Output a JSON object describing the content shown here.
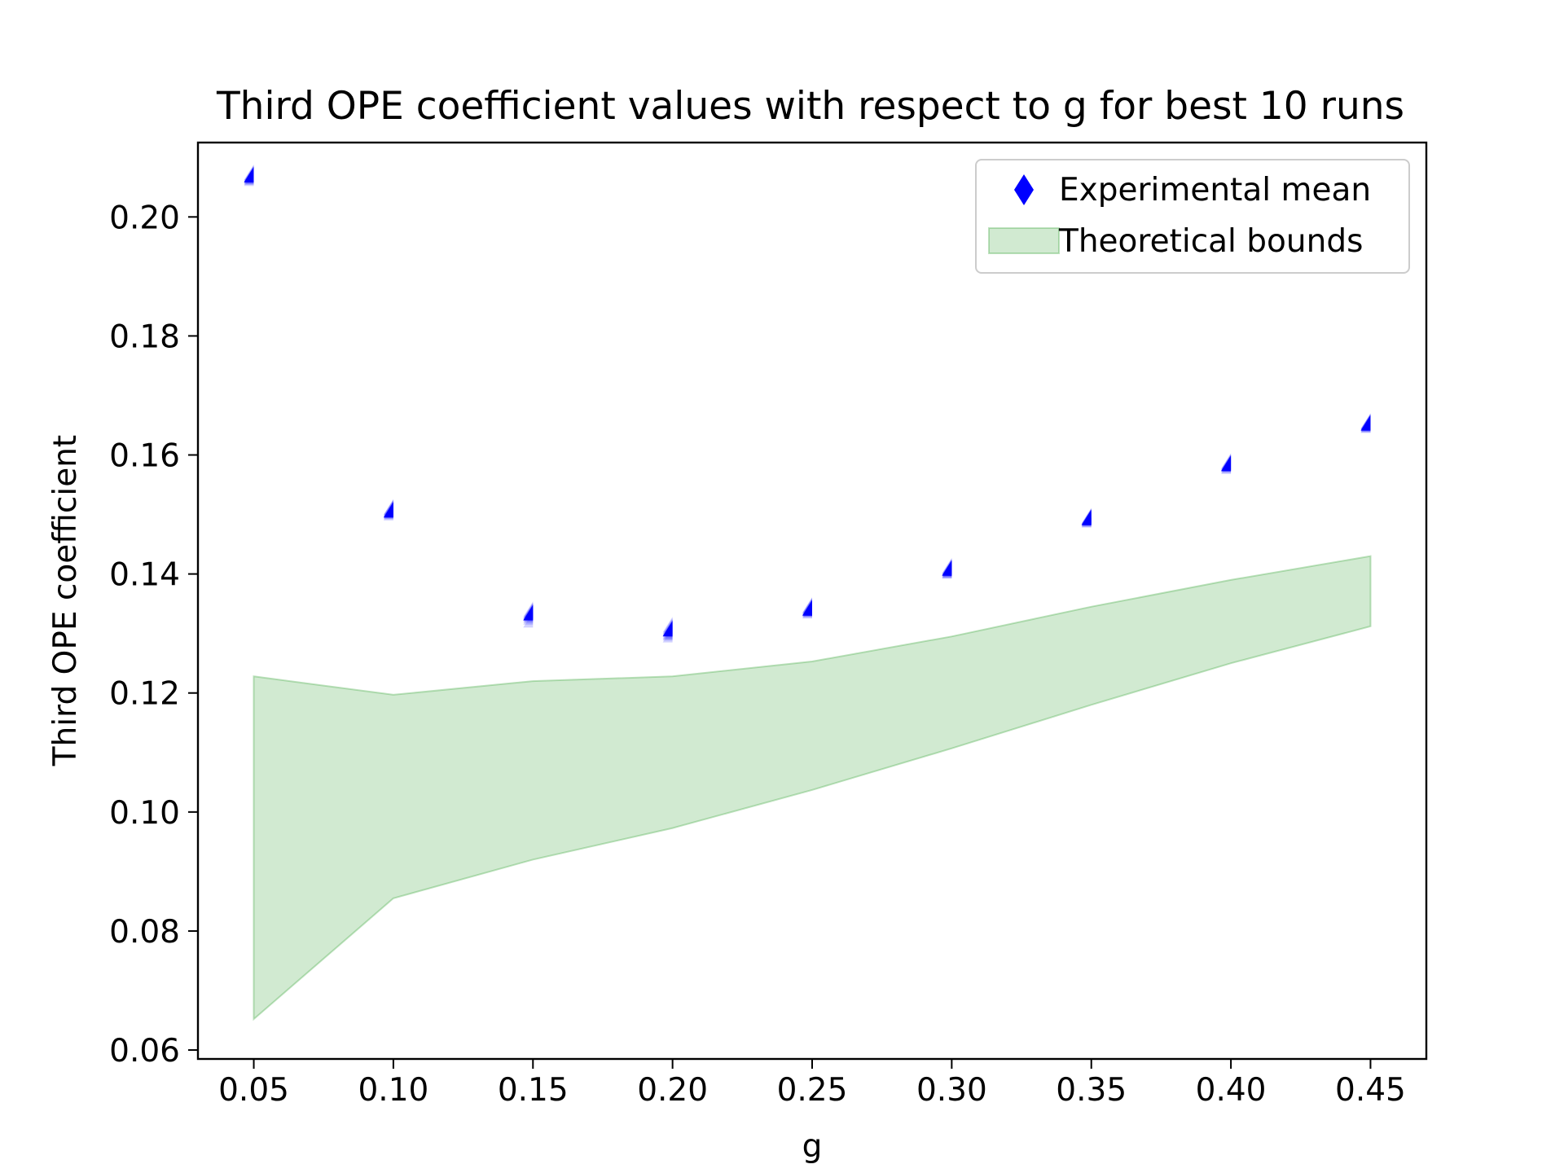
{
  "chart_data": {
    "type": "scatter",
    "title": "Third OPE coefficient values with respect to g for best 10 runs",
    "xlabel": "g",
    "ylabel": "Third OPE coefficient",
    "xlim": [
      0.03,
      0.47
    ],
    "ylim": [
      0.0585,
      0.2125
    ],
    "x_ticks": [
      "0.05",
      "0.10",
      "0.15",
      "0.20",
      "0.25",
      "0.30",
      "0.35",
      "0.40",
      "0.45"
    ],
    "y_ticks": [
      "0.06",
      "0.08",
      "0.10",
      "0.12",
      "0.14",
      "0.16",
      "0.18",
      "0.20"
    ],
    "grid": false,
    "legend_position": "top-right",
    "series": [
      {
        "name": "Experimental mean",
        "kind": "scatter",
        "marker": "thin-diamond",
        "color": "#0000ff",
        "x": [
          0.05,
          0.1,
          0.15,
          0.2,
          0.25,
          0.3,
          0.35,
          0.4,
          0.45
        ],
        "y": [
          0.2058,
          0.1495,
          0.1322,
          0.1295,
          0.133,
          0.1397,
          0.1482,
          0.1573,
          0.1641
        ],
        "runs": [
          [
            0.2055,
            0.206,
            0.2058,
            0.2062,
            0.2052,
            0.2057,
            0.2059,
            0.2061,
            0.2054,
            0.2056
          ],
          [
            0.149,
            0.1498,
            0.1495,
            0.1492,
            0.15,
            0.1494,
            0.1497,
            0.1493,
            0.1496,
            0.1499
          ],
          [
            0.131,
            0.1325,
            0.1322,
            0.1318,
            0.1328,
            0.132,
            0.1324,
            0.1315,
            0.1326,
            0.1323
          ],
          [
            0.1285,
            0.13,
            0.1292,
            0.1298,
            0.1288,
            0.1302,
            0.1295,
            0.129,
            0.1297,
            0.1296
          ],
          [
            0.1325,
            0.1333,
            0.1328,
            0.1335,
            0.133,
            0.1327,
            0.1332,
            0.1329,
            0.1331,
            0.1334
          ],
          [
            0.1392,
            0.14,
            0.1395,
            0.1398,
            0.1397,
            0.1394,
            0.1399,
            0.1396,
            0.1401,
            0.1393
          ],
          [
            0.1478,
            0.1484,
            0.148,
            0.1483,
            0.1482,
            0.1481,
            0.1485,
            0.1479,
            0.1483,
            0.1484
          ],
          [
            0.1568,
            0.1576,
            0.1572,
            0.1575,
            0.157,
            0.1574,
            0.1573,
            0.1577,
            0.1571,
            0.1574
          ],
          [
            0.1637,
            0.1644,
            0.164,
            0.1642,
            0.1641,
            0.1639,
            0.1643,
            0.1638,
            0.1642,
            0.1644
          ]
        ]
      },
      {
        "name": "Theoretical bounds",
        "kind": "fill_between",
        "color": "#2ca02c",
        "alpha": 0.22,
        "x": [
          0.05,
          0.1,
          0.15,
          0.2,
          0.25,
          0.3,
          0.35,
          0.4,
          0.45
        ],
        "upper": [
          0.1228,
          0.1197,
          0.122,
          0.1228,
          0.1253,
          0.1295,
          0.1345,
          0.139,
          0.143
        ],
        "lower": [
          0.0652,
          0.0855,
          0.092,
          0.0973,
          0.1037,
          0.1107,
          0.118,
          0.125,
          0.1312
        ]
      }
    ]
  }
}
